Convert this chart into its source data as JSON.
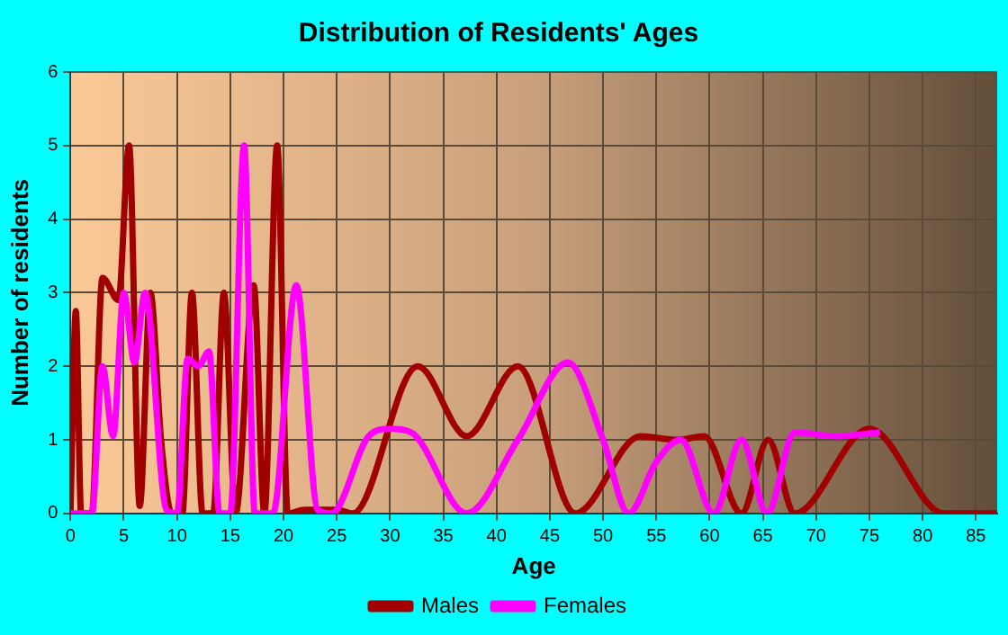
{
  "chart_data": {
    "type": "line",
    "title": "Distribution of Residents' Ages",
    "xlabel": "Age",
    "ylabel": "Number of residents",
    "xlim": [
      0,
      87
    ],
    "xticks": [
      0,
      5,
      10,
      15,
      20,
      25,
      30,
      35,
      40,
      45,
      50,
      55,
      60,
      65,
      70,
      75,
      80,
      85
    ],
    "ylim": [
      0,
      6
    ],
    "yticks": [
      0,
      1,
      2,
      3,
      4,
      5,
      6
    ],
    "grid": true,
    "legend": "bottom",
    "marker": "none",
    "line_style": "solid",
    "series": [
      {
        "name": "Males",
        "color": "#a00000",
        "x": [
          0,
          0.5,
          1,
          2,
          3,
          4.5,
          5.5,
          6.5,
          7.5,
          8.5,
          9.5,
          10.5,
          11.4,
          12.4,
          13.4,
          14.4,
          15.5,
          17.2,
          18.2,
          19.4,
          20.4,
          22,
          25,
          26.5,
          32.6,
          37.2,
          42,
          47.4,
          53.5,
          57,
          59.5,
          63,
          65.5,
          68,
          75,
          82,
          87
        ],
        "values": [
          0,
          2.75,
          0,
          0,
          3.2,
          2.9,
          5,
          0.1,
          3,
          1,
          0,
          0,
          3,
          0,
          0,
          3,
          0,
          3.1,
          0,
          5,
          0,
          0.05,
          0.05,
          0,
          2,
          1.05,
          2,
          0,
          1.05,
          1,
          1.05,
          0,
          1,
          0,
          1.15,
          0,
          0
        ]
      },
      {
        "name": "Females",
        "color": "#ff00ff",
        "x": [
          0,
          2,
          3,
          4,
          5,
          6,
          7,
          9,
          10,
          11,
          12,
          13,
          14,
          15,
          16.3,
          17.3,
          19,
          21.2,
          23.2,
          24.5,
          28,
          30,
          32,
          37.2,
          42,
          46.7,
          50,
          52.4,
          55,
          57.3,
          60.4,
          63,
          65.4,
          68,
          72,
          76
        ],
        "values": [
          0,
          0,
          2,
          1.05,
          3,
          2.05,
          3,
          0.05,
          0,
          2.1,
          2,
          2.2,
          0,
          0,
          5,
          0,
          0,
          3.1,
          0.05,
          0,
          1.05,
          1.15,
          1.1,
          0,
          1,
          2.05,
          1,
          0,
          0.7,
          1,
          0,
          1,
          0,
          1.1,
          1.05,
          1.1
        ]
      }
    ]
  }
}
